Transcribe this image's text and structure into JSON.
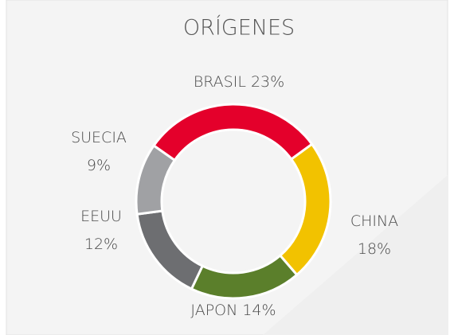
{
  "chart_data": {
    "type": "donut",
    "title": "ORÍGENES",
    "categories": [
      "BRASIL",
      "CHINA",
      "JAPON",
      "EEUU",
      "SUECIA"
    ],
    "values": [
      23,
      18,
      14,
      12,
      9
    ],
    "value_labels": [
      "23%",
      "18%",
      "14%",
      "12%",
      "9%"
    ],
    "colors": [
      "#e4002b",
      "#f2c200",
      "#5b7f2b",
      "#6d6e71",
      "#a0a1a4"
    ]
  }
}
